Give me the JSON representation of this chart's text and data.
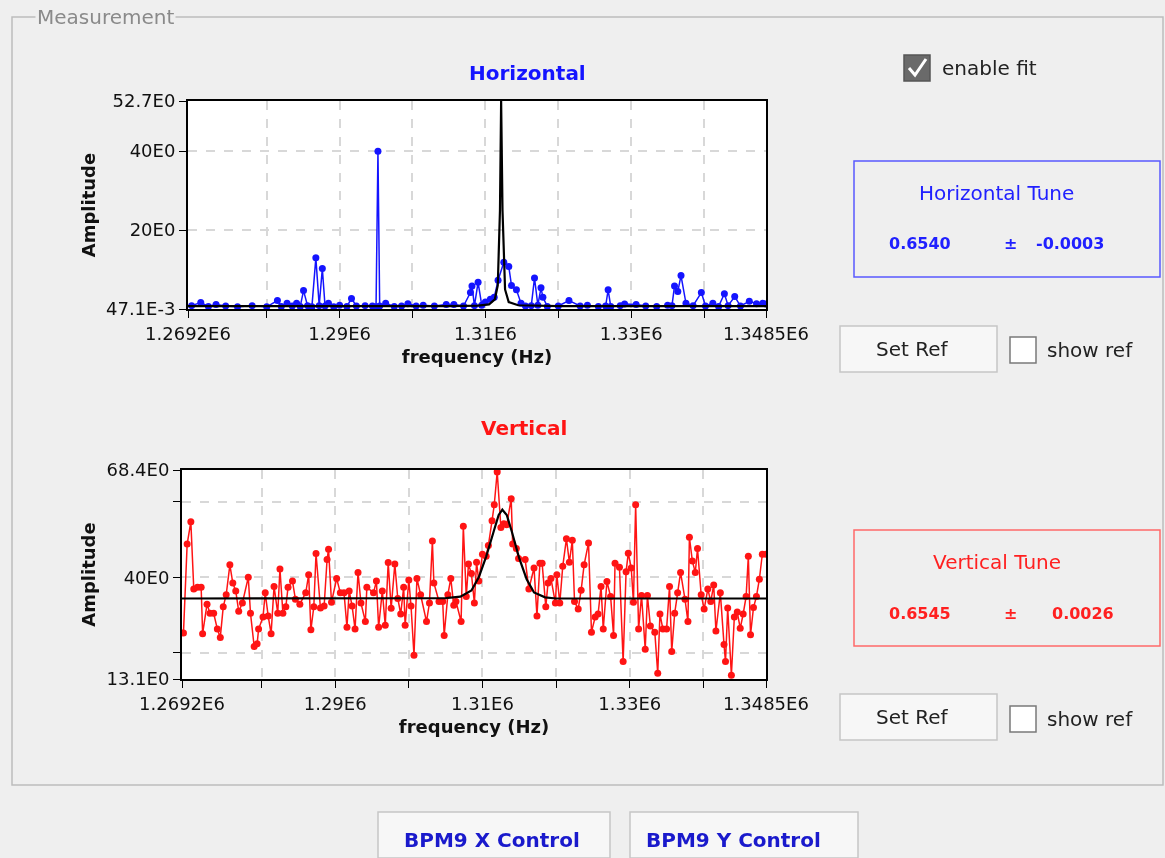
{
  "chart_data": [
    {
      "type": "line",
      "title": "Horizontal",
      "xlabel": "frequency (Hz)",
      "ylabel": "Amplitude",
      "grid": true,
      "marker": "circle",
      "xlim": [
        1269200,
        1348500
      ],
      "ylim": [
        0.0471,
        52.7
      ],
      "xticks": [
        {
          "value": 1269200,
          "label": "1.2692E6"
        },
        {
          "value": 1280000,
          "label": null
        },
        {
          "value": 1290000,
          "label": "1.29E6"
        },
        {
          "value": 1300000,
          "label": null
        },
        {
          "value": 1310000,
          "label": "1.31E6"
        },
        {
          "value": 1320000,
          "label": null
        },
        {
          "value": 1330000,
          "label": "1.33E6"
        },
        {
          "value": 1340000,
          "label": null
        },
        {
          "value": 1348500,
          "label": "1.3485E6"
        }
      ],
      "yticks": [
        {
          "value": 0.0471,
          "label": "47.1E-3"
        },
        {
          "value": 20,
          "label": "20E0"
        },
        {
          "value": 40,
          "label": "40E0"
        },
        {
          "value": 52.7,
          "label": "52.7E0"
        }
      ],
      "series": [
        {
          "color": "#1414ff",
          "x": [
            1269700,
            1270950,
            1272000,
            1273050,
            1274370,
            1276000,
            1278000,
            1280000,
            1281470,
            1282000,
            1282790,
            1283500,
            1284100,
            1284600,
            1285050,
            1285600,
            1286200,
            1286740,
            1287200,
            1287630,
            1288000,
            1288470,
            1289200,
            1290000,
            1291000,
            1291630,
            1292300,
            1293500,
            1294500,
            1295000,
            1295260,
            1295500,
            1296320,
            1297500,
            1298500,
            1299370,
            1300500,
            1301470,
            1303000,
            1304630,
            1305680,
            1307000,
            1307950,
            1308160,
            1308500,
            1309000,
            1309500,
            1310000,
            1310680,
            1311210,
            1311740,
            1312530,
            1313210,
            1313580,
            1314260,
            1314890,
            1315500,
            1316300,
            1316740,
            1317200,
            1317630,
            1317890,
            1318500,
            1320000,
            1321470,
            1323000,
            1324000,
            1325500,
            1326500,
            1326840,
            1327200,
            1328500,
            1329100,
            1330680,
            1332000,
            1333500,
            1335000,
            1335600,
            1335950,
            1336400,
            1336840,
            1337520,
            1338500,
            1339630,
            1340200,
            1341210,
            1342000,
            1342790,
            1343300,
            1344210,
            1345000,
            1346210,
            1347200,
            1348050,
            1348500
          ],
          "values": [
            0.9,
            1.7,
            0.7,
            1.2,
            0.8,
            0.6,
            0.9,
            0.6,
            2.2,
            0.7,
            1.5,
            0.8,
            1.5,
            0.7,
            4.7,
            0.9,
            0.6,
            13.0,
            0.9,
            10.3,
            0.8,
            1.5,
            0.6,
            1.0,
            0.7,
            2.7,
            0.8,
            0.9,
            0.8,
            0.6,
            40.0,
            0.8,
            1.5,
            0.7,
            0.8,
            1.4,
            0.8,
            1.0,
            0.8,
            1.2,
            1.2,
            0.8,
            4.2,
            5.9,
            0.9,
            6.8,
            1.0,
            1.8,
            2.5,
            3.0,
            7.3,
            11.9,
            10.8,
            6.0,
            4.9,
            1.5,
            0.8,
            0.9,
            7.9,
            1.0,
            5.4,
            3.0,
            0.7,
            0.8,
            2.2,
            0.8,
            1.0,
            0.7,
            0.8,
            4.9,
            0.7,
            0.9,
            1.3,
            1.2,
            0.8,
            0.7,
            1.0,
            0.9,
            5.9,
            4.5,
            8.5,
            1.5,
            0.9,
            4.2,
            0.8,
            1.5,
            0.7,
            3.9,
            0.9,
            3.2,
            0.8,
            2.0,
            1.4,
            1.5,
            1.3
          ]
        },
        {
          "color": "#000000",
          "marker": "none",
          "x": [
            1269200,
            1305000,
            1309000,
            1310500,
            1311300,
            1311700,
            1312000,
            1312160,
            1312350,
            1312700,
            1313200,
            1314500,
            1320000,
            1348500
          ],
          "values": [
            0.8,
            0.8,
            0.9,
            1.2,
            2.5,
            6.0,
            25.0,
            52.7,
            25.0,
            5.0,
            1.8,
            1.0,
            0.8,
            0.8
          ]
        }
      ]
    },
    {
      "type": "line",
      "title": "Vertical",
      "xlabel": "frequency (Hz)",
      "ylabel": "Amplitude",
      "grid": true,
      "marker": "circle",
      "xlim": [
        1269200,
        1348500
      ],
      "ylim": [
        13.1,
        68.4
      ],
      "xticks": [
        {
          "value": 1269200,
          "label": "1.2692E6"
        },
        {
          "value": 1280000,
          "label": null
        },
        {
          "value": 1290000,
          "label": "1.29E6"
        },
        {
          "value": 1300000,
          "label": null
        },
        {
          "value": 1310000,
          "label": "1.31E6"
        },
        {
          "value": 1320000,
          "label": null
        },
        {
          "value": 1330000,
          "label": "1.33E6"
        },
        {
          "value": 1340000,
          "label": null
        },
        {
          "value": 1348500,
          "label": "1.3485E6"
        }
      ],
      "yticks": [
        {
          "value": 13.1,
          "label": "13.1E0"
        },
        {
          "value": 20,
          "label": null
        },
        {
          "value": 40,
          "label": "40E0"
        },
        {
          "value": 60,
          "label": null
        },
        {
          "value": 68.4,
          "label": "68.4E0"
        }
      ],
      "series": [
        {
          "color": "#ff1414",
          "x": [
            1269400,
            1269900,
            1270400,
            1270800,
            1271300,
            1271800,
            1272000,
            1272600,
            1273000,
            1273500,
            1274000,
            1274400,
            1274800,
            1275200,
            1275700,
            1276100,
            1276500,
            1276900,
            1277400,
            1278200,
            1278500,
            1279000,
            1279400,
            1279600,
            1280200,
            1280500,
            1280900,
            1281300,
            1281700,
            1282200,
            1282500,
            1282900,
            1283300,
            1283600,
            1284200,
            1284600,
            1285200,
            1286000,
            1286400,
            1286700,
            1287100,
            1287400,
            1288000,
            1288500,
            1288900,
            1289100,
            1289500,
            1290200,
            1290700,
            1291200,
            1291600,
            1291900,
            1292300,
            1292700,
            1293100,
            1293500,
            1294100,
            1294300,
            1295200,
            1295600,
            1295900,
            1296400,
            1296800,
            1297200,
            1297600,
            1298100,
            1298500,
            1298900,
            1299300,
            1299500,
            1300000,
            1300300,
            1300700,
            1301100,
            1301600,
            1302400,
            1302800,
            1303200,
            1303400,
            1304100,
            1304600,
            1304800,
            1305300,
            1305700,
            1306100,
            1306400,
            1307100,
            1307400,
            1307800,
            1308100,
            1308500,
            1308900,
            1309200,
            1309500,
            1310000,
            1310500,
            1310800,
            1311300,
            1311600,
            1312000,
            1312500,
            1312900,
            1313300,
            1313900,
            1314100,
            1314600,
            1314900,
            1315800,
            1316300,
            1317000,
            1317400,
            1317800,
            1318100,
            1318600,
            1318900,
            1319300,
            1319900,
            1320100,
            1320500,
            1320900,
            1321400,
            1321800,
            1322200,
            1322500,
            1323000,
            1323400,
            1323800,
            1324400,
            1324800,
            1325300,
            1325700,
            1326100,
            1326400,
            1326900,
            1327400,
            1327800,
            1328000,
            1328600,
            1329100,
            1329500,
            1329800,
            1330200,
            1330500,
            1330800,
            1331200,
            1331600,
            1332100,
            1332400,
            1332800,
            1333400,
            1333800,
            1334100,
            1334500,
            1335000,
            1335400,
            1335700,
            1336100,
            1336500,
            1336900,
            1337500,
            1337900,
            1338100,
            1338500,
            1338900,
            1339200,
            1339700,
            1340100,
            1340600,
            1341000,
            1341400,
            1341700,
            1342300,
            1342800,
            1343000,
            1343300,
            1343800,
            1344200,
            1344600,
            1345000,
            1345400,
            1345800,
            1346100,
            1346400,
            1346800,
            1347200,
            1347600,
            1348000,
            1348500
          ],
          "values": [
            25.3,
            48.8,
            54.7,
            36.9,
            37.4,
            37.4,
            25.1,
            32.9,
            30.5,
            30.5,
            26.3,
            24.1,
            32.2,
            35.4,
            43.3,
            38.5,
            36.4,
            31.0,
            33.2,
            40.0,
            30.5,
            21.7,
            22.4,
            26.3,
            29.5,
            35.9,
            29.8,
            25.1,
            37.6,
            30.5,
            42.2,
            30.5,
            32.2,
            37.4,
            39.0,
            34.2,
            32.9,
            35.9,
            40.7,
            26.1,
            32.2,
            46.3,
            31.9,
            32.4,
            44.7,
            47.4,
            33.4,
            39.7,
            35.9,
            35.9,
            26.8,
            36.4,
            32.4,
            26.3,
            41.3,
            33.2,
            28.3,
            37.4,
            35.9,
            39.0,
            26.8,
            36.4,
            27.3,
            43.9,
            31.8,
            43.5,
            34.4,
            30.3,
            37.4,
            27.3,
            39.3,
            32.4,
            19.4,
            39.7,
            35.4,
            28.3,
            33.2,
            49.6,
            38.5,
            33.6,
            33.6,
            24.6,
            35.4,
            39.7,
            32.6,
            33.6,
            28.3,
            53.5,
            34.9,
            43.5,
            41.0,
            33.2,
            44.0,
            39.0,
            46.1,
            45.6,
            48.4,
            55.0,
            59.2,
            67.9,
            53.2,
            54.2,
            53.9,
            60.8,
            48.8,
            47.6,
            45.0,
            44.7,
            36.9,
            42.5,
            29.8,
            43.7,
            43.7,
            32.2,
            38.5,
            39.7,
            33.2,
            40.7,
            33.2,
            42.9,
            50.2,
            44.0,
            49.8,
            33.6,
            31.6,
            36.6,
            43.3,
            49.1,
            25.5,
            29.5,
            30.3,
            37.6,
            26.3,
            38.9,
            34.9,
            24.6,
            43.7,
            42.7,
            17.7,
            41.5,
            46.4,
            42.5,
            33.4,
            59.2,
            26.3,
            35.2,
            21.0,
            35.2,
            27.1,
            25.5,
            14.6,
            30.3,
            26.3,
            26.3,
            37.6,
            20.4,
            30.5,
            35.9,
            41.3,
            34.2,
            28.3,
            50.6,
            44.3,
            41.3,
            47.6,
            35.4,
            31.6,
            36.9,
            33.6,
            38.0,
            25.8,
            35.9,
            22.2,
            17.7,
            31.9,
            14.1,
            29.5,
            30.8,
            26.5,
            30.3,
            34.9,
            45.6,
            24.8,
            32.0,
            34.9,
            39.5,
            46.1,
            46.1
          ]
        },
        {
          "color": "#000000",
          "marker": "none",
          "x": [
            1269200,
            1305000,
            1307000,
            1308500,
            1309500,
            1310500,
            1311500,
            1312200,
            1312700,
            1313300,
            1314000,
            1315000,
            1316000,
            1317000,
            1318500,
            1320000,
            1348500
          ],
          "values": [
            34.4,
            34.5,
            34.9,
            36.5,
            40.0,
            45.5,
            52.0,
            56.5,
            57.9,
            56.5,
            52.0,
            45.0,
            39.5,
            36.0,
            34.7,
            34.4,
            34.4
          ]
        }
      ]
    },
    {
      "type": "other",
      "annotations": [
        "Measurement",
        "enable fit",
        "Set Ref",
        "show ref",
        "Set Ref",
        "show ref",
        "Horizontal Tune",
        "0.6540",
        "±",
        "-0.0003",
        "Vertical Tune",
        "0.6545",
        "±",
        "0.0026",
        "BPM9 X Control",
        "BPM9 Y Control"
      ]
    }
  ]
}
